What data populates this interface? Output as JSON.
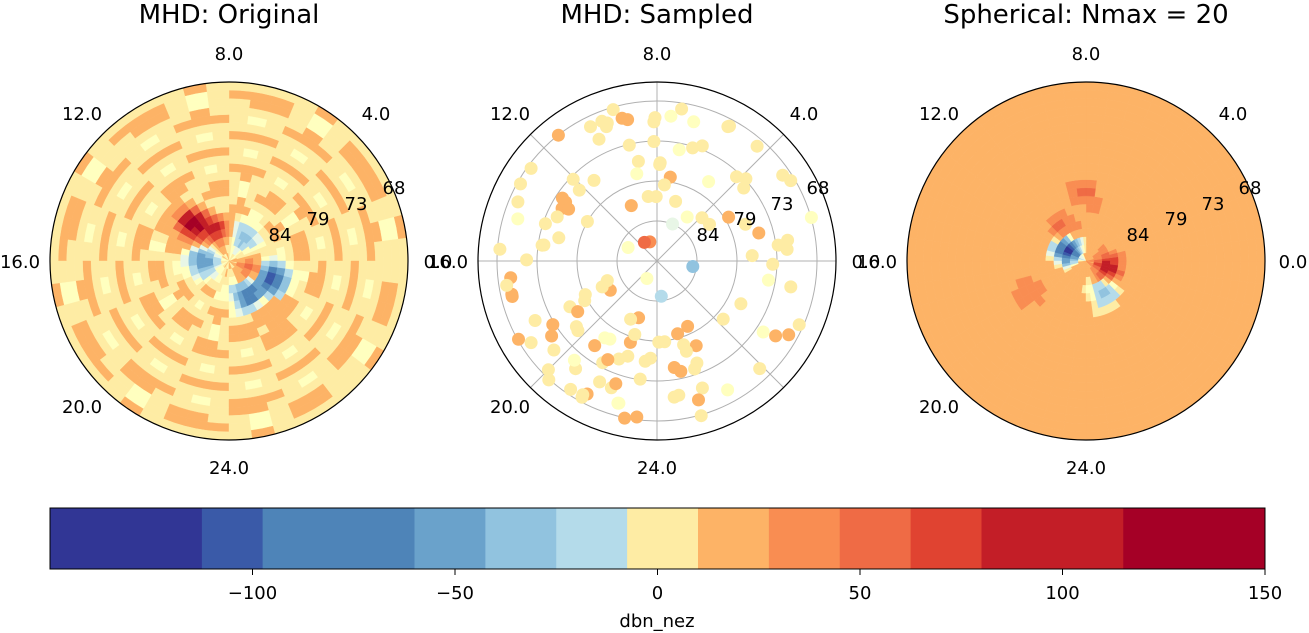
{
  "chart_data": [
    {
      "type": "polar-heatmap",
      "title": "MHD: Original",
      "theta_labels": [
        "0.0",
        "4.0",
        "8.0",
        "12.0",
        "16.0",
        "20.0",
        "24.0"
      ],
      "r_labels": [
        "68",
        "73",
        "79",
        "84"
      ],
      "grid": false,
      "variable": "dbn_nez",
      "pattern": {
        "base": 8,
        "features": [
          {
            "mlt": 9.0,
            "r": 0.29,
            "value": 135
          },
          {
            "mlt": 7.5,
            "r": 0.18,
            "value": 70
          },
          {
            "mlt": 12.0,
            "r": 0.15,
            "value": -70
          },
          {
            "mlt": 4.0,
            "r": 0.15,
            "value": -45
          },
          {
            "mlt": 20.0,
            "r": 0.22,
            "value": -90
          },
          {
            "mlt": 22.5,
            "r": 0.26,
            "value": -125
          },
          {
            "mlt": 22.5,
            "r": 0.14,
            "value": 55
          },
          {
            "mlt": 20.5,
            "r": 0.36,
            "value": 25
          }
        ]
      }
    },
    {
      "type": "polar-scatter",
      "title": "MHD: Sampled",
      "theta_labels": [
        "0.0",
        "4.0",
        "8.0",
        "12.0",
        "16.0",
        "20.0",
        "24.0"
      ],
      "r_labels": [
        "68",
        "73",
        "79",
        "84"
      ],
      "grid": true,
      "variable": "dbn_nez",
      "sample_count": 150
    },
    {
      "type": "polar-heatmap",
      "title": "Spherical: Nmax = 20",
      "theta_labels": [
        "0.0",
        "4.0",
        "8.0",
        "12.0",
        "16.0",
        "20.0",
        "24.0"
      ],
      "r_labels": [
        "68",
        "73",
        "79",
        "84"
      ],
      "grid": false,
      "variable": "dbn_nez",
      "pattern": {
        "base": 18,
        "features": [
          {
            "mlt": 10.0,
            "r": 0.12,
            "value": -135
          },
          {
            "mlt": 8.5,
            "r": 0.22,
            "value": 45
          },
          {
            "mlt": 20.0,
            "r": 0.21,
            "value": -55
          },
          {
            "mlt": 23.0,
            "r": 0.13,
            "value": 85
          },
          {
            "mlt": 14.0,
            "r": 0.38,
            "value": 30
          },
          {
            "mlt": 6.0,
            "r": 0.38,
            "value": 35
          }
        ]
      }
    }
  ],
  "colorbar": {
    "label": "dbn_nez",
    "min": -150,
    "max": 150,
    "levels": [
      -150,
      -112.5,
      -97.5,
      -60,
      -42.5,
      -25,
      -7.5,
      10,
      27.5,
      45,
      62.5,
      80,
      115,
      150
    ],
    "tick_values": [
      -100,
      -50,
      0,
      50,
      100,
      150
    ],
    "tick_labels": [
      "−100",
      "−50",
      "0",
      "50",
      "100",
      "150"
    ],
    "colors": [
      "#313695",
      "#3a5aa8",
      "#4e84b8",
      "#6aa2cb",
      "#91c3df",
      "#b4dbea",
      "#feeca4",
      "#fdb366",
      "#f98d52",
      "#ef6b45",
      "#e04331",
      "#c31e27",
      "#a50026"
    ],
    "over_white": "#ffffbf",
    "near_zero_cool": "#e8f6e6"
  }
}
